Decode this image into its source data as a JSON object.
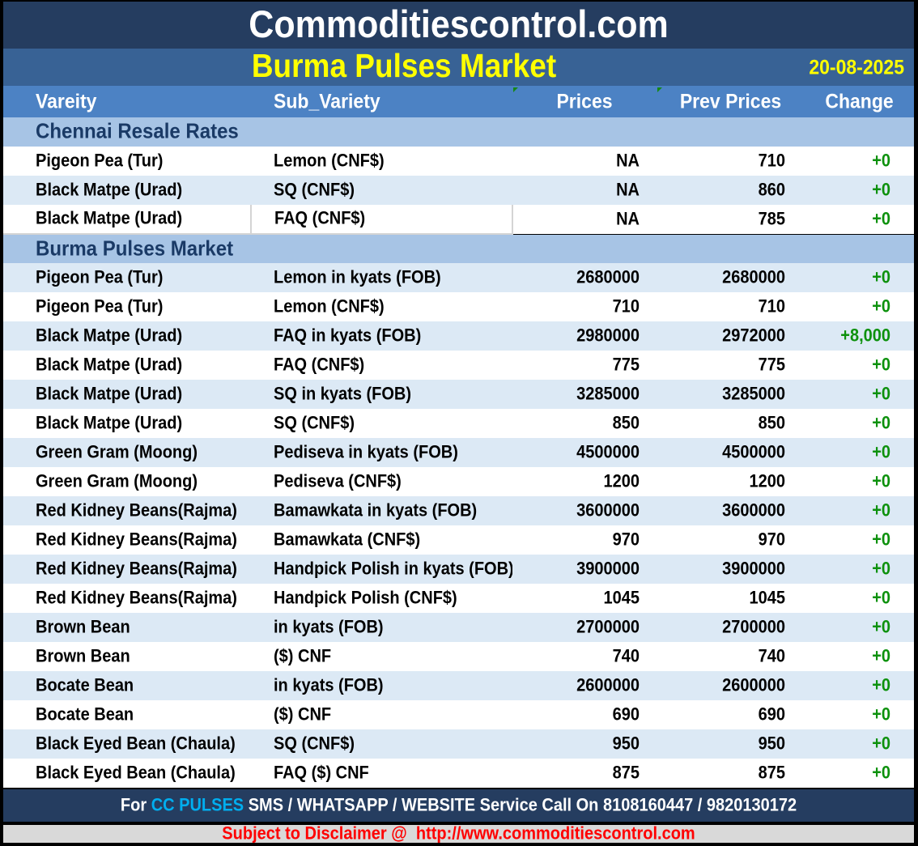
{
  "header": {
    "site_title": "Commoditiescontrol.com",
    "report_title": "Burma Pulses Market",
    "date": "20-08-2025"
  },
  "table": {
    "columns": [
      {
        "label": "Vareity",
        "corner_mark": false
      },
      {
        "label": "Sub_Variety",
        "corner_mark": false
      },
      {
        "label": "Prices",
        "corner_mark": true
      },
      {
        "label": "Prev Prices",
        "corner_mark": true
      },
      {
        "label": "Change",
        "corner_mark": false
      }
    ],
    "corner_mark_icon": "green-corner-triangle",
    "sections": [
      {
        "title": "Chennai Resale Rates",
        "rows": [
          {
            "variety": "Pigeon Pea (Tur)",
            "sub_variety": "Lemon (CNF$)",
            "price": "NA",
            "prev_price": "710",
            "change": "+0"
          },
          {
            "variety": "Black Matpe (Urad)",
            "sub_variety": "SQ (CNF$)",
            "price": "NA",
            "prev_price": "860",
            "change": "+0"
          },
          {
            "variety": "Black Matpe (Urad)",
            "sub_variety": "FAQ (CNF$)",
            "price": "NA",
            "prev_price": "785",
            "change": "+0",
            "outlined": true
          }
        ]
      },
      {
        "title": "Burma Pulses Market",
        "rows": [
          {
            "variety": "Pigeon Pea (Tur)",
            "sub_variety": "Lemon in kyats (FOB)",
            "price": "2680000",
            "prev_price": "2680000",
            "change": "+0"
          },
          {
            "variety": "Pigeon Pea (Tur)",
            "sub_variety": "Lemon (CNF$)",
            "price": "710",
            "prev_price": "710",
            "change": "+0"
          },
          {
            "variety": "Black Matpe (Urad)",
            "sub_variety": "FAQ in kyats (FOB)",
            "price": "2980000",
            "prev_price": "2972000",
            "change": "+8,000"
          },
          {
            "variety": "Black Matpe (Urad)",
            "sub_variety": "FAQ (CNF$)",
            "price": "775",
            "prev_price": "775",
            "change": "+0"
          },
          {
            "variety": "Black Matpe (Urad)",
            "sub_variety": "SQ in kyats (FOB)",
            "price": "3285000",
            "prev_price": "3285000",
            "change": "+0"
          },
          {
            "variety": "Black Matpe (Urad)",
            "sub_variety": "SQ (CNF$)",
            "price": "850",
            "prev_price": "850",
            "change": "+0"
          },
          {
            "variety": "Green Gram (Moong)",
            "sub_variety": "Pediseva in kyats (FOB)",
            "price": "4500000",
            "prev_price": "4500000",
            "change": "+0"
          },
          {
            "variety": "Green Gram (Moong)",
            "sub_variety": "Pediseva (CNF$)",
            "price": "1200",
            "prev_price": "1200",
            "change": "+0"
          },
          {
            "variety": "Red Kidney Beans(Rajma)",
            "sub_variety": "Bamawkata in kyats (FOB)",
            "price": "3600000",
            "prev_price": "3600000",
            "change": "+0"
          },
          {
            "variety": "Red Kidney Beans(Rajma)",
            "sub_variety": "Bamawkata (CNF$)",
            "price": "970",
            "prev_price": "970",
            "change": "+0"
          },
          {
            "variety": "Red Kidney Beans(Rajma)",
            "sub_variety": "Handpick Polish in kyats (FOB)",
            "price": "3900000",
            "prev_price": "3900000",
            "change": "+0"
          },
          {
            "variety": "Red Kidney Beans(Rajma)",
            "sub_variety": "Handpick Polish (CNF$)",
            "price": "1045",
            "prev_price": "1045",
            "change": "+0"
          },
          {
            "variety": "Brown Bean",
            "sub_variety": "in kyats (FOB)",
            "price": "2700000",
            "prev_price": "2700000",
            "change": "+0"
          },
          {
            "variety": "Brown Bean",
            "sub_variety": "($) CNF",
            "price": "740",
            "prev_price": "740",
            "change": "+0"
          },
          {
            "variety": "Bocate Bean",
            "sub_variety": "in kyats (FOB)",
            "price": "2600000",
            "prev_price": "2600000",
            "change": "+0"
          },
          {
            "variety": "Bocate Bean",
            "sub_variety": "($) CNF",
            "price": "690",
            "prev_price": "690",
            "change": "+0"
          },
          {
            "variety": "Black Eyed Bean (Chaula)",
            "sub_variety": "SQ (CNF$)",
            "price": "950",
            "prev_price": "950",
            "change": "+0"
          },
          {
            "variety": "Black Eyed Bean (Chaula)",
            "sub_variety": "FAQ ($) CNF",
            "price": "875",
            "prev_price": "875",
            "change": "+0"
          }
        ]
      }
    ]
  },
  "footer": {
    "service_prefix": "For ",
    "service_brand": "CC PULSES",
    "service_rest": " SMS / WHATSAPP / WEBSITE Service Call On 8108160447 / 9820130172",
    "disclaimer": "Subject to Disclaimer @  http://www.commoditiescontrol.com"
  },
  "colors": {
    "top_bar": "#253D60",
    "title_bar": "#386295",
    "table_header": "#4C82C4",
    "section_row": "#A7C4E5",
    "shaded_row": "#DCE9F5",
    "report_title_text": "#FFFF00",
    "date_text": "#FFFF00",
    "section_text": "#1A3A66",
    "change_positive": "#0D910D",
    "brand_highlight": "#00AEEF",
    "disclaimer_text": "#FF0000",
    "disclaimer_bg": "#D9D9D9"
  }
}
